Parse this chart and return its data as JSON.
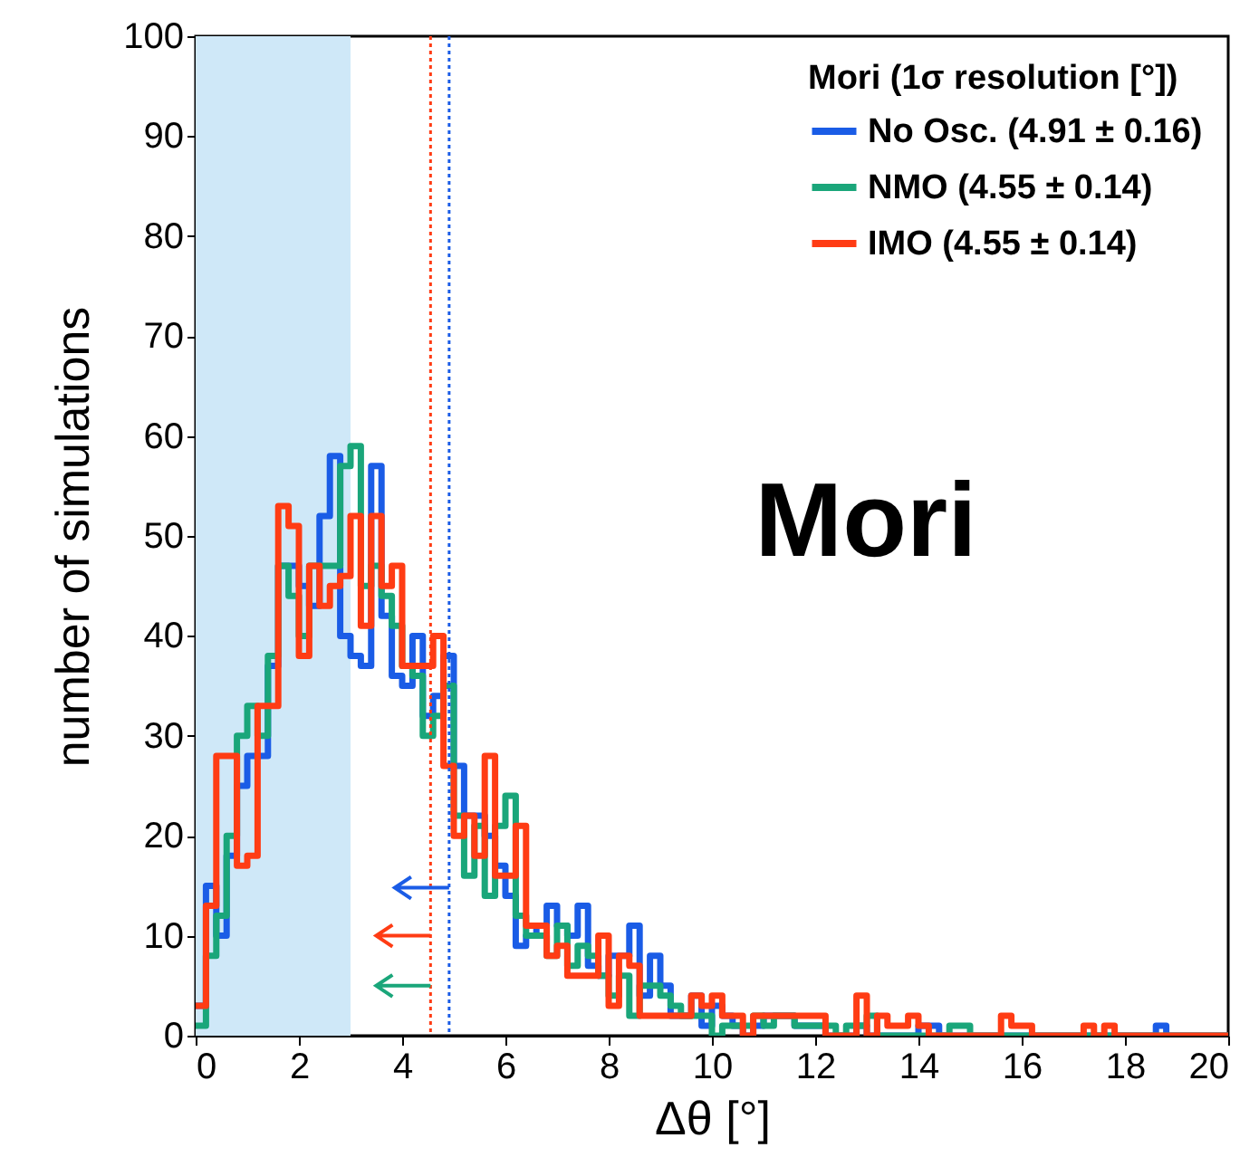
{
  "chart_data": {
    "type": "histogram",
    "xlabel": "Δθ [°]",
    "ylabel": "number of simulations",
    "legend_title": "Mori (1σ resolution [°])",
    "legend": "top right",
    "bins": [
      0,
      0.2,
      0.4,
      0.6,
      0.8,
      1,
      1.2,
      1.4,
      1.6,
      1.8,
      2,
      2.2,
      2.4,
      2.6,
      2.8,
      3,
      3.2,
      3.4,
      3.6,
      3.8,
      4,
      4.2,
      4.4,
      4.6,
      4.8,
      5,
      5.2,
      5.4,
      5.6,
      5.8,
      6,
      6.2,
      6.4,
      6.6,
      6.8,
      7,
      7.2,
      7.4,
      7.6,
      7.8,
      8,
      8.2,
      8.4,
      8.6,
      8.8,
      9,
      9.2,
      9.4,
      9.6,
      9.8,
      10,
      10.2,
      10.4,
      10.6,
      10.8,
      11,
      11.2,
      11.4,
      11.6,
      11.8,
      12,
      12.2,
      12.4,
      12.6,
      12.8,
      13,
      13.2,
      13.4,
      13.6,
      13.8,
      14,
      14.2,
      14.4,
      14.6,
      14.8,
      15,
      15.2,
      15.4,
      15.6,
      15.8,
      16,
      16.2,
      16.4,
      16.6,
      16.8,
      17,
      17.2,
      17.4,
      17.6,
      17.8,
      18,
      18.2,
      18.4,
      18.6,
      18.8,
      19,
      19.2,
      19.4,
      19.6,
      19.8,
      20
    ],
    "series": [
      {
        "name": "No Osc. (4.91 ± 0.16)",
        "color": "#1a5ce6",
        "values": [
          3,
          15,
          10,
          18,
          25,
          28,
          28,
          37,
          47,
          47,
          45,
          43,
          52,
          58,
          40,
          38,
          37,
          57,
          42,
          36,
          35,
          40,
          32,
          34,
          38,
          27,
          22,
          22,
          20,
          17,
          14,
          9,
          10,
          11,
          13,
          11,
          10,
          13,
          7,
          6,
          8,
          8,
          11,
          4,
          8,
          5,
          2,
          2,
          4,
          1,
          3,
          2,
          1,
          0,
          1,
          2,
          2,
          2,
          1,
          1,
          1,
          0,
          0,
          0,
          1,
          0,
          0,
          0,
          0,
          0,
          1,
          1,
          0,
          0,
          0,
          0,
          0,
          0,
          0,
          0,
          0,
          0,
          0,
          0,
          0,
          0,
          0,
          0,
          0,
          0,
          0,
          0,
          0,
          1,
          0,
          0,
          0,
          0,
          0,
          0
        ]
      },
      {
        "name": "NMO (4.55 ± 0.14)",
        "color": "#1aa67a",
        "values": [
          1,
          8,
          12,
          20,
          30,
          33,
          30,
          38,
          47,
          44,
          40,
          47,
          47,
          47,
          57,
          59,
          45,
          47,
          44,
          41,
          37,
          36,
          30,
          32,
          35,
          22,
          16,
          21,
          14,
          21,
          24,
          12,
          10,
          10,
          8,
          11,
          7,
          9,
          8,
          6,
          4,
          6,
          2,
          5,
          5,
          4,
          3,
          2,
          2,
          2,
          0,
          1,
          1,
          1,
          2,
          1,
          2,
          2,
          1,
          1,
          1,
          1,
          0,
          1,
          1,
          2,
          0,
          0,
          0,
          0,
          0,
          0,
          0,
          1,
          1,
          0,
          0,
          0,
          0,
          0,
          0,
          0,
          0,
          0,
          0,
          0,
          0,
          0,
          0,
          0,
          0,
          0,
          0,
          0,
          0,
          0,
          0,
          0,
          0,
          0
        ]
      },
      {
        "name": "IMO (4.55 ± 0.14)",
        "color": "#ff3c14",
        "values": [
          3,
          13,
          28,
          28,
          17,
          18,
          33,
          33,
          53,
          51,
          38,
          47,
          43,
          45,
          46,
          52,
          41,
          52,
          45,
          47,
          37,
          37,
          37,
          40,
          27,
          20,
          22,
          18,
          28,
          16,
          16,
          21,
          11,
          11,
          8,
          9,
          6,
          6,
          6,
          10,
          3,
          8,
          7,
          2,
          2,
          2,
          2,
          2,
          4,
          3,
          4,
          2,
          2,
          0,
          2,
          2,
          2,
          2,
          2,
          2,
          2,
          0,
          0,
          0,
          4,
          0,
          2,
          1,
          1,
          2,
          1,
          0,
          0,
          0,
          0,
          0,
          0,
          0,
          2,
          1,
          1,
          0,
          0,
          0,
          0,
          0,
          1,
          0,
          1,
          0,
          0,
          0,
          0,
          0,
          0,
          0,
          0,
          0,
          0,
          0
        ]
      }
    ],
    "xlim": [
      0,
      20
    ],
    "xticks": [
      0,
      2,
      4,
      6,
      8,
      10,
      12,
      14,
      16,
      18,
      20
    ],
    "ylim": [
      0,
      100
    ],
    "yticks": [
      0,
      10,
      20,
      30,
      40,
      50,
      60,
      70,
      80,
      90,
      100
    ],
    "bands": [
      {
        "axis": "x",
        "from": 0,
        "to": 3,
        "color": "#cfe8f8"
      }
    ],
    "ref_lines": [
      {
        "axis": "x",
        "value": 4.55,
        "color": "#ff3c14",
        "line_style": "dotted"
      },
      {
        "axis": "x",
        "value": 4.91,
        "color": "#1a5ce6",
        "line_style": "dotted"
      }
    ],
    "annotations": [
      "Mori"
    ]
  }
}
